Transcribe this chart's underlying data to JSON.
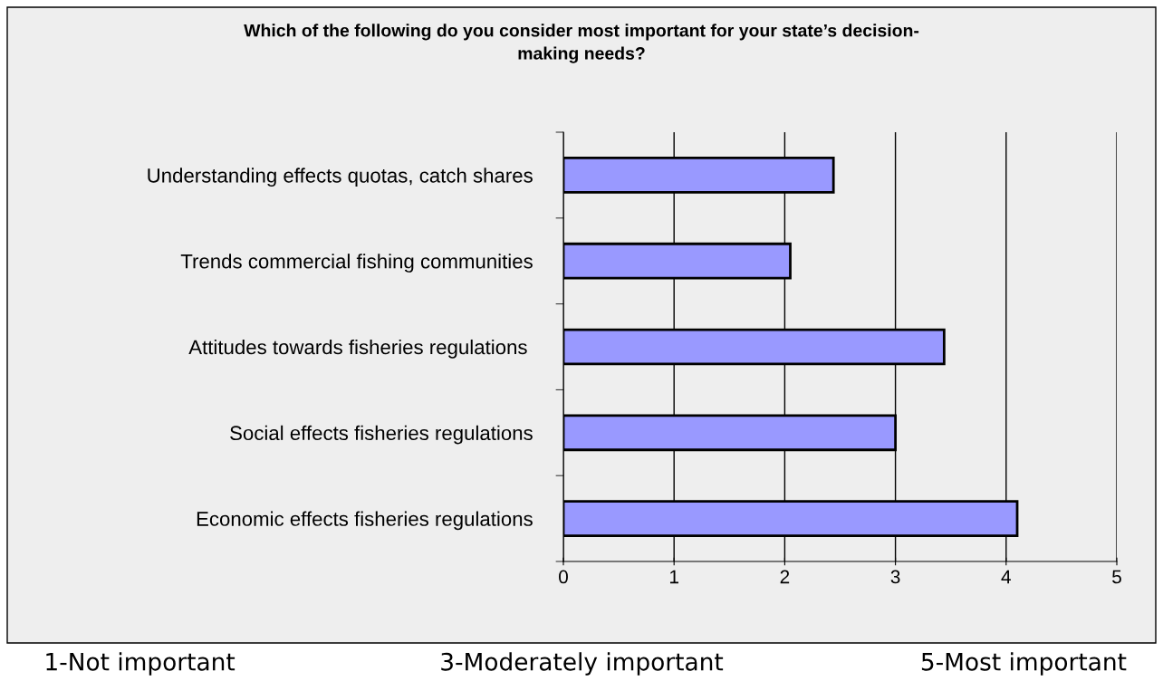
{
  "chart_data": {
    "type": "bar",
    "orientation": "horizontal",
    "title": "Which of the following do you consider most important for your state’s decision-\nmaking needs?",
    "categories": [
      "Understanding effects quotas, catch shares",
      "Trends commercial fishing communities",
      "Attitudes towards fisheries regulations ",
      "Social effects fisheries regulations",
      "Economic effects fisheries regulations"
    ],
    "values": [
      2.44,
      2.05,
      3.44,
      3.0,
      4.1
    ],
    "color": "#9999ff",
    "xlim": [
      0,
      5
    ],
    "xticks": [
      0,
      1,
      2,
      3,
      4,
      5
    ],
    "grid": "x",
    "annotations": [
      "1-Not important",
      "3-Moderately important",
      "5-Most important"
    ]
  }
}
